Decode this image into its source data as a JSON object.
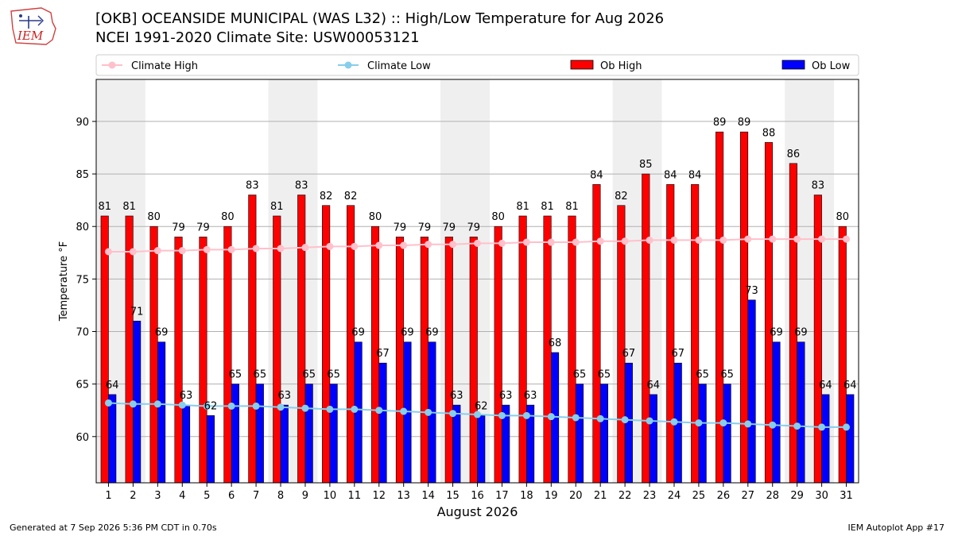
{
  "header": {
    "logo_text": "IEM",
    "title_line1": "[OKB] OCEANSIDE MUNICIPAL (WAS L32) :: High/Low Temperature for Aug 2026",
    "title_line2": "NCEI 1991-2020 Climate Site: USW00053121"
  },
  "footer": {
    "generated": "Generated at 7 Sep 2026 5:36 PM CDT in 0.70s",
    "app": "IEM Autoplot App #17"
  },
  "chart_data": {
    "type": "bar",
    "xlabel": "August 2026",
    "ylabel": "Temperature °F",
    "ylim": [
      55.6,
      94.0
    ],
    "yticks": [
      60,
      65,
      70,
      75,
      80,
      85,
      90
    ],
    "grid": "horizontal",
    "legend": "top",
    "shaded_weekends": [
      [
        1,
        2
      ],
      [
        8,
        9
      ],
      [
        15,
        16
      ],
      [
        22,
        23
      ],
      [
        29,
        30
      ]
    ],
    "categories": [
      "1",
      "2",
      "3",
      "4",
      "5",
      "6",
      "7",
      "8",
      "9",
      "10",
      "11",
      "12",
      "13",
      "14",
      "15",
      "16",
      "17",
      "18",
      "19",
      "20",
      "21",
      "22",
      "23",
      "24",
      "25",
      "26",
      "27",
      "28",
      "29",
      "30",
      "31"
    ],
    "series": [
      {
        "name": "Climate High",
        "kind": "line",
        "color": "#ffc0cb",
        "values": [
          77.6,
          77.6,
          77.7,
          77.7,
          77.8,
          77.8,
          77.9,
          77.9,
          78.0,
          78.1,
          78.1,
          78.2,
          78.2,
          78.3,
          78.3,
          78.4,
          78.4,
          78.5,
          78.5,
          78.5,
          78.6,
          78.6,
          78.7,
          78.7,
          78.7,
          78.7,
          78.8,
          78.8,
          78.8,
          78.8,
          78.8
        ]
      },
      {
        "name": "Climate Low",
        "kind": "line",
        "color": "#87ceeb",
        "values": [
          63.2,
          63.1,
          63.1,
          63.0,
          62.9,
          62.9,
          62.9,
          62.8,
          62.7,
          62.6,
          62.6,
          62.5,
          62.4,
          62.3,
          62.2,
          62.1,
          62.0,
          62.0,
          61.9,
          61.8,
          61.7,
          61.6,
          61.5,
          61.4,
          61.3,
          61.3,
          61.2,
          61.1,
          61.0,
          60.9,
          60.9
        ]
      },
      {
        "name": "Ob High",
        "kind": "bar",
        "color": "#ff0000",
        "values": [
          81,
          81,
          80,
          79,
          79,
          80,
          83,
          81,
          83,
          82,
          82,
          80,
          79,
          79,
          79,
          79,
          80,
          81,
          81,
          81,
          84,
          82,
          85,
          84,
          84,
          89,
          89,
          88,
          86,
          83,
          80
        ]
      },
      {
        "name": "Ob Low",
        "kind": "bar",
        "color": "#0000ff",
        "values": [
          64,
          71,
          69,
          63,
          62,
          65,
          65,
          63,
          65,
          65,
          69,
          67,
          69,
          69,
          63,
          62,
          63,
          63,
          68,
          65,
          65,
          67,
          64,
          67,
          65,
          65,
          73,
          69,
          69,
          64,
          64
        ]
      }
    ]
  }
}
